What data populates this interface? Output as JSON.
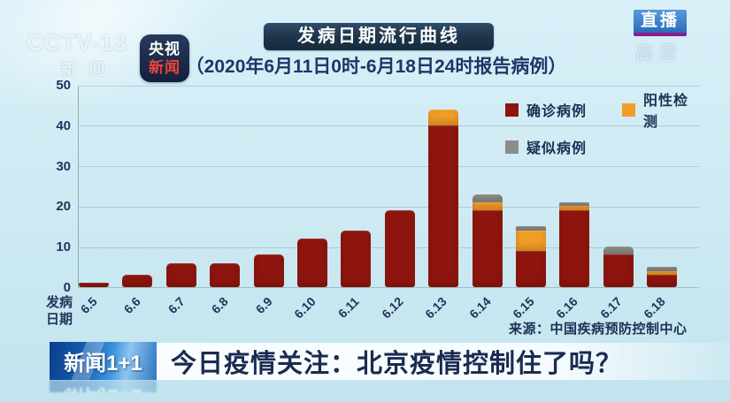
{
  "channel": {
    "watermark_line1": "CCTV-13",
    "watermark_line2": "新闻",
    "logo_badge": {
      "line1": "央视",
      "line2": "新闻"
    },
    "live_badge": "直播",
    "hd_watermark": "高清"
  },
  "header": {
    "title": "发病日期流行曲线",
    "subtitle": "（2020年6月11日0时-6月18日24时报告病例）"
  },
  "chart_data": {
    "type": "bar",
    "stacked": true,
    "title": "发病日期流行曲线",
    "categories": [
      "6.5",
      "6.6",
      "6.7",
      "6.8",
      "6.9",
      "6.10",
      "6.11",
      "6.12",
      "6.13",
      "6.14",
      "6.15",
      "6.16",
      "6.17",
      "6.18"
    ],
    "series": [
      {
        "name": "确诊病例",
        "color": "#8d150e",
        "values": [
          1,
          3,
          6,
          6,
          8,
          12,
          14,
          19,
          40,
          19,
          9,
          19,
          8,
          3
        ]
      },
      {
        "name": "阳性检测",
        "color": "#f09d26",
        "values": [
          0,
          0,
          0,
          0,
          0,
          0,
          0,
          0,
          4,
          2,
          5,
          1,
          0,
          1
        ]
      },
      {
        "name": "疑似病例",
        "color": "#8b8d89",
        "values": [
          0,
          0,
          0,
          0,
          0,
          0,
          0,
          0,
          0,
          2,
          1,
          1,
          2,
          1
        ]
      }
    ],
    "ylim": [
      0,
      50
    ],
    "yticks": [
      0,
      10,
      20,
      30,
      40,
      50
    ],
    "xlabel": "发病日期",
    "grid": true,
    "legend_position": "top-right"
  },
  "axis": {
    "xlabel_line1": "发病",
    "xlabel_line2": "日期"
  },
  "source": "来源：中国疾病预防控制中心",
  "lower_third": {
    "logo": "新闻1+1",
    "headline": "今日疫情关注：北京疫情控制住了吗？"
  },
  "colors": {
    "confirmed": "#8d150e",
    "positive": "#f09d26",
    "suspected": "#8b8d89",
    "navy_text": "#1d3054",
    "banner_bg": "#20374d",
    "live_blue": "#2f7ac6",
    "live_underline": "#8e1d8d"
  }
}
